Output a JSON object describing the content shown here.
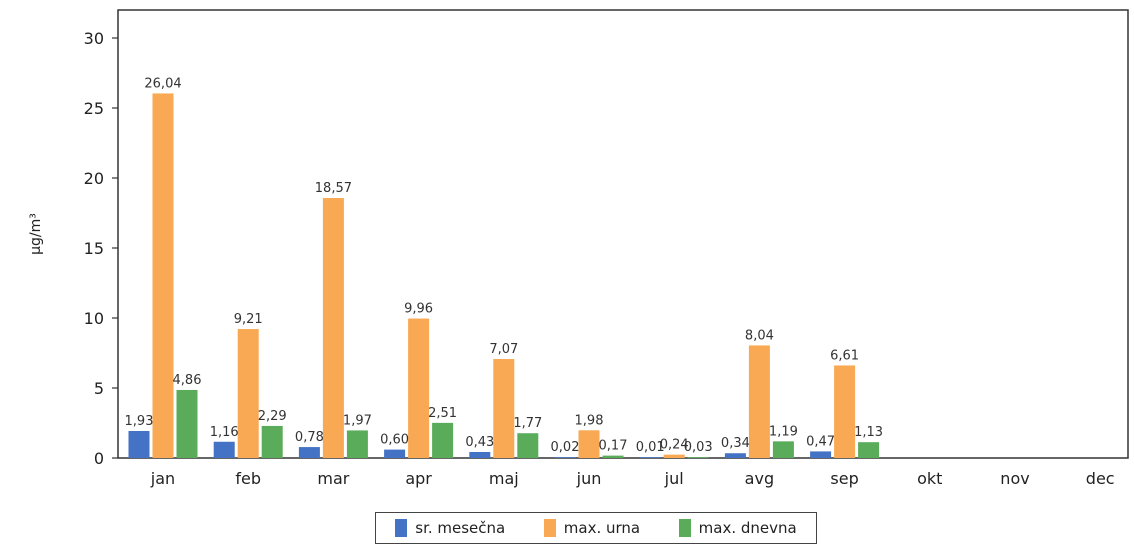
{
  "chart_data": {
    "type": "bar",
    "categories": [
      "jan",
      "feb",
      "mar",
      "apr",
      "maj",
      "jun",
      "jul",
      "avg",
      "sep",
      "okt",
      "nov",
      "dec"
    ],
    "series": [
      {
        "name": "sr. mesečna",
        "color": "#4472c4",
        "values": [
          1.93,
          1.16,
          0.78,
          0.6,
          0.43,
          0.02,
          0.01,
          0.34,
          0.47,
          null,
          null,
          null
        ],
        "labels": [
          "1,93",
          "1,16",
          "0,78",
          "0,60",
          "0,43",
          "0,02",
          "0,01",
          "0,34",
          "0,47",
          "",
          "",
          ""
        ]
      },
      {
        "name": "max. urna",
        "color": "#f9a954",
        "values": [
          26.04,
          9.21,
          18.57,
          9.96,
          7.07,
          1.98,
          0.24,
          8.04,
          6.61,
          null,
          null,
          null
        ],
        "labels": [
          "26,04",
          "9,21",
          "18,57",
          "9,96",
          "7,07",
          "1,98",
          "0,24",
          "8,04",
          "6,61",
          "",
          "",
          ""
        ]
      },
      {
        "name": "max. dnevna",
        "color": "#5aac5a",
        "values": [
          4.86,
          2.29,
          1.97,
          2.51,
          1.77,
          0.17,
          0.03,
          1.19,
          1.13,
          null,
          null,
          null
        ],
        "labels": [
          "4,86",
          "2,29",
          "1,97",
          "2,51",
          "1,77",
          "0,17",
          "0,03",
          "1,19",
          "1,13",
          "",
          "",
          ""
        ]
      }
    ],
    "ylabel": "µg/m³",
    "ylim": [
      0,
      32
    ],
    "yticks": [
      0,
      5,
      10,
      15,
      20,
      25,
      30
    ],
    "grid": false,
    "legend_position": "bottom"
  }
}
